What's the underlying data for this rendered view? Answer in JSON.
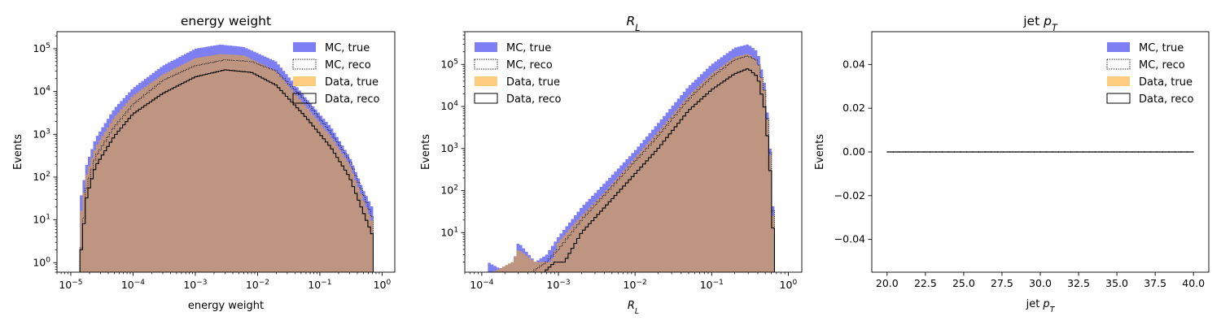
{
  "colors": {
    "mc_true": "#7f7ff4",
    "data_true": "#fecc7f",
    "overlap": "#be9580",
    "mc_reco": "#000000",
    "data_reco": "#000000"
  },
  "chart_data": [
    {
      "type": "histogram",
      "title": "energy weight",
      "xlabel": "energy weight",
      "ylabel": "Events",
      "xscale": "log",
      "yscale": "log",
      "xlim": [
        6e-06,
        1.6
      ],
      "ylim": [
        0.6,
        250000.0
      ],
      "xticks": [
        "10^-5",
        "10^-4",
        "10^-3",
        "10^-2",
        "10^-1",
        "10^0"
      ],
      "yticks": [
        "10^0",
        "10^1",
        "10^2",
        "10^3",
        "10^4",
        "10^5"
      ],
      "legend": {
        "placement": "top-right",
        "entries": [
          "MC, true",
          "MC, reco",
          "Data, true",
          "Data, reco"
        ]
      },
      "x_range": [
        1.4e-05,
        0.72
      ],
      "series": [
        {
          "name": "MC, true",
          "style": "filled",
          "points": [
            [
              1.4e-05,
              25
            ],
            [
              1.8e-05,
              200
            ],
            [
              2.5e-05,
              800
            ],
            [
              5e-05,
              4000
            ],
            [
              0.0001,
              12000
            ],
            [
              0.0003,
              40000
            ],
            [
              0.001,
              100000
            ],
            [
              0.0025,
              125000
            ],
            [
              0.006,
              110000
            ],
            [
              0.02,
              50000
            ],
            [
              0.06,
              7000
            ],
            [
              0.15,
              1500
            ],
            [
              0.3,
              300
            ],
            [
              0.5,
              50
            ],
            [
              0.72,
              18
            ]
          ]
        },
        {
          "name": "MC, reco",
          "style": "dotted-step",
          "points": [
            [
              1.4e-05,
              1
            ],
            [
              1.8e-05,
              60
            ],
            [
              2.5e-05,
              300
            ],
            [
              5e-05,
              1500
            ],
            [
              0.0001,
              5000
            ],
            [
              0.0003,
              18000
            ],
            [
              0.001,
              40000
            ],
            [
              0.003,
              55000
            ],
            [
              0.008,
              50000
            ],
            [
              0.02,
              30000
            ],
            [
              0.06,
              6000
            ],
            [
              0.15,
              1100
            ],
            [
              0.3,
              250
            ],
            [
              0.5,
              40
            ],
            [
              0.72,
              10
            ]
          ]
        },
        {
          "name": "Data, true",
          "style": "filled",
          "points": [
            [
              1.4e-05,
              10
            ],
            [
              1.8e-05,
              120
            ],
            [
              2.5e-05,
              500
            ],
            [
              5e-05,
              2500
            ],
            [
              0.0001,
              8000
            ],
            [
              0.0003,
              25000
            ],
            [
              0.001,
              60000
            ],
            [
              0.0025,
              75000
            ],
            [
              0.006,
              70000
            ],
            [
              0.02,
              30000
            ],
            [
              0.06,
              4500
            ],
            [
              0.15,
              900
            ],
            [
              0.3,
              200
            ],
            [
              0.5,
              30
            ],
            [
              0.72,
              8
            ]
          ]
        },
        {
          "name": "Data, reco",
          "style": "solid-step",
          "points": [
            [
              1.4e-05,
              1
            ],
            [
              1.8e-05,
              35
            ],
            [
              2.5e-05,
              180
            ],
            [
              5e-05,
              900
            ],
            [
              0.0001,
              3000
            ],
            [
              0.0003,
              9000
            ],
            [
              0.001,
              22000
            ],
            [
              0.003,
              32000
            ],
            [
              0.008,
              28000
            ],
            [
              0.02,
              14000
            ],
            [
              0.06,
              2500
            ],
            [
              0.15,
              500
            ],
            [
              0.3,
              100
            ],
            [
              0.5,
              15
            ],
            [
              0.72,
              4
            ]
          ]
        }
      ]
    },
    {
      "type": "histogram",
      "title": "R_L",
      "xlabel": "R_L",
      "ylabel": "Events",
      "xscale": "log",
      "yscale": "log",
      "xlim": [
        6e-05,
        1.5
      ],
      "ylim": [
        1.15,
        600000.0
      ],
      "xticks": [
        "10^-4",
        "10^-3",
        "10^-2",
        "10^-1",
        "10^0"
      ],
      "yticks": [
        "10^1",
        "10^2",
        "10^3",
        "10^4",
        "10^5"
      ],
      "legend": {
        "placement": "top-left",
        "entries": [
          "MC, true",
          "MC, reco",
          "Data, true",
          "Data, reco"
        ]
      },
      "x_range": [
        0.00012,
        0.66
      ],
      "series": [
        {
          "name": "MC, true",
          "style": "filled",
          "points": [
            [
              0.00012,
              2
            ],
            [
              0.00024,
              1
            ],
            [
              0.0003,
              6
            ],
            [
              0.0005,
              2
            ],
            [
              0.0007,
              3
            ],
            [
              0.001,
              8
            ],
            [
              0.002,
              40
            ],
            [
              0.004,
              150
            ],
            [
              0.01,
              900
            ],
            [
              0.02,
              4000
            ],
            [
              0.05,
              30000
            ],
            [
              0.1,
              100000
            ],
            [
              0.2,
              250000
            ],
            [
              0.3,
              300000
            ],
            [
              0.4,
              200000
            ],
            [
              0.5,
              30000
            ],
            [
              0.58,
              1000
            ],
            [
              0.63,
              50
            ],
            [
              0.66,
              5
            ]
          ]
        },
        {
          "name": "MC, reco",
          "style": "dotted-step",
          "points": [
            [
              0.00012,
              1
            ],
            [
              0.0004,
              1
            ],
            [
              0.0007,
              2
            ],
            [
              0.001,
              4
            ],
            [
              0.002,
              20
            ],
            [
              0.004,
              80
            ],
            [
              0.01,
              500
            ],
            [
              0.02,
              2000
            ],
            [
              0.05,
              15000
            ],
            [
              0.1,
              50000
            ],
            [
              0.2,
              130000
            ],
            [
              0.3,
              160000
            ],
            [
              0.4,
              120000
            ],
            [
              0.5,
              20000
            ],
            [
              0.58,
              800
            ],
            [
              0.63,
              40
            ],
            [
              0.66,
              3
            ]
          ]
        },
        {
          "name": "Data, true",
          "style": "filled",
          "points": [
            [
              0.00012,
              1
            ],
            [
              0.00025,
              2
            ],
            [
              0.0003,
              4
            ],
            [
              0.0005,
              2
            ],
            [
              0.0008,
              2
            ],
            [
              0.001,
              6
            ],
            [
              0.002,
              25
            ],
            [
              0.004,
              90
            ],
            [
              0.01,
              600
            ],
            [
              0.02,
              2500
            ],
            [
              0.05,
              18000
            ],
            [
              0.1,
              60000
            ],
            [
              0.2,
              150000
            ],
            [
              0.3,
              180000
            ],
            [
              0.4,
              120000
            ],
            [
              0.5,
              20000
            ],
            [
              0.58,
              700
            ],
            [
              0.63,
              30
            ],
            [
              0.66,
              3
            ]
          ]
        },
        {
          "name": "Data, reco",
          "style": "solid-step",
          "points": [
            [
              0.00012,
              1
            ],
            [
              0.0006,
              1
            ],
            [
              0.0009,
              2
            ],
            [
              0.0012,
              2
            ],
            [
              0.002,
              10
            ],
            [
              0.004,
              40
            ],
            [
              0.01,
              250
            ],
            [
              0.02,
              1000
            ],
            [
              0.05,
              8000
            ],
            [
              0.1,
              25000
            ],
            [
              0.2,
              60000
            ],
            [
              0.3,
              80000
            ],
            [
              0.4,
              50000
            ],
            [
              0.5,
              8000
            ],
            [
              0.58,
              300
            ],
            [
              0.63,
              15
            ],
            [
              0.66,
              2
            ]
          ]
        }
      ]
    },
    {
      "type": "histogram",
      "title": "jet p_T",
      "xlabel": "jet p_T",
      "ylabel": "Events",
      "xscale": "linear",
      "yscale": "linear",
      "xlim": [
        19,
        41
      ],
      "ylim": [
        -0.055,
        0.055
      ],
      "xticks": [
        "20.0",
        "22.5",
        "25.0",
        "27.5",
        "30.0",
        "32.5",
        "35.0",
        "37.5",
        "40.0"
      ],
      "yticks": [
        "0.04",
        "0.02",
        "0.00",
        "−0.02",
        "−0.04"
      ],
      "legend": {
        "placement": "top-right",
        "entries": [
          "MC, true",
          "MC, reco",
          "Data, true",
          "Data, reco"
        ]
      },
      "series": [
        {
          "name": "MC, true",
          "x": [
            20,
            40
          ],
          "values": [
            0,
            0
          ]
        },
        {
          "name": "MC, reco",
          "x": [
            20,
            40
          ],
          "values": [
            0,
            0
          ]
        },
        {
          "name": "Data, true",
          "x": [
            20,
            40
          ],
          "values": [
            0,
            0
          ]
        },
        {
          "name": "Data, reco",
          "x": [
            20,
            40
          ],
          "values": [
            0,
            0
          ]
        }
      ]
    }
  ]
}
